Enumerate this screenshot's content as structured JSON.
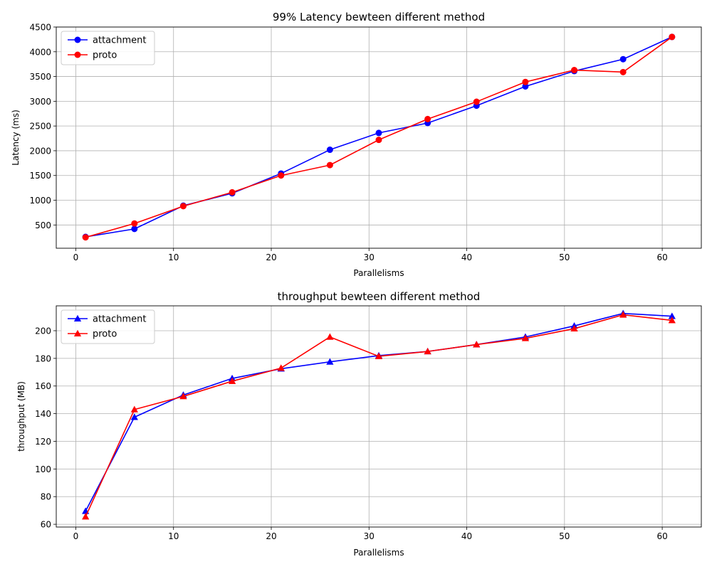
{
  "chart_data": [
    {
      "type": "line",
      "title": "99% Latency bewteen different method",
      "xlabel": "Parallelisms",
      "ylabel": "Latency (ms)",
      "x": [
        1,
        6,
        11,
        16,
        21,
        26,
        31,
        36,
        41,
        46,
        51,
        56,
        61
      ],
      "xlim": [
        -2,
        64
      ],
      "ylim": [
        30,
        4500
      ],
      "xticks": [
        0,
        10,
        20,
        30,
        40,
        50,
        60
      ],
      "yticks": [
        500,
        1000,
        1500,
        2000,
        2500,
        3000,
        3500,
        4000,
        4500
      ],
      "grid": true,
      "legend_position": "upper-left",
      "marker": "circle",
      "series": [
        {
          "name": "attachment",
          "color": "#0000ff",
          "values": [
            260,
            420,
            890,
            1140,
            1540,
            2020,
            2360,
            2560,
            2910,
            3300,
            3610,
            3850,
            4300
          ]
        },
        {
          "name": "proto",
          "color": "#ff0000",
          "values": [
            250,
            530,
            880,
            1160,
            1500,
            1710,
            2220,
            2640,
            2990,
            3390,
            3630,
            3590,
            4300
          ]
        }
      ]
    },
    {
      "type": "line",
      "title": "throughput bewteen different method",
      "xlabel": "Parallelisms",
      "ylabel": "throughput (MB)",
      "x": [
        1,
        6,
        11,
        16,
        21,
        26,
        31,
        36,
        41,
        46,
        51,
        56,
        61
      ],
      "xlim": [
        -2,
        64
      ],
      "ylim": [
        58,
        218
      ],
      "xticks": [
        0,
        10,
        20,
        30,
        40,
        50,
        60
      ],
      "yticks": [
        60,
        80,
        100,
        120,
        140,
        160,
        180,
        200
      ],
      "grid": true,
      "legend_position": "upper-left",
      "marker": "triangle",
      "series": [
        {
          "name": "attachment",
          "color": "#0000ff",
          "values": [
            69.5,
            137.5,
            153.5,
            165.5,
            172.5,
            177.5,
            182,
            185,
            190,
            195.5,
            203.5,
            212.5,
            210.5
          ]
        },
        {
          "name": "proto",
          "color": "#ff0000",
          "values": [
            65.5,
            143,
            152.5,
            163.5,
            173,
            195.5,
            181.5,
            185,
            190,
            194.5,
            201.5,
            211.5,
            207.5
          ]
        }
      ]
    }
  ]
}
